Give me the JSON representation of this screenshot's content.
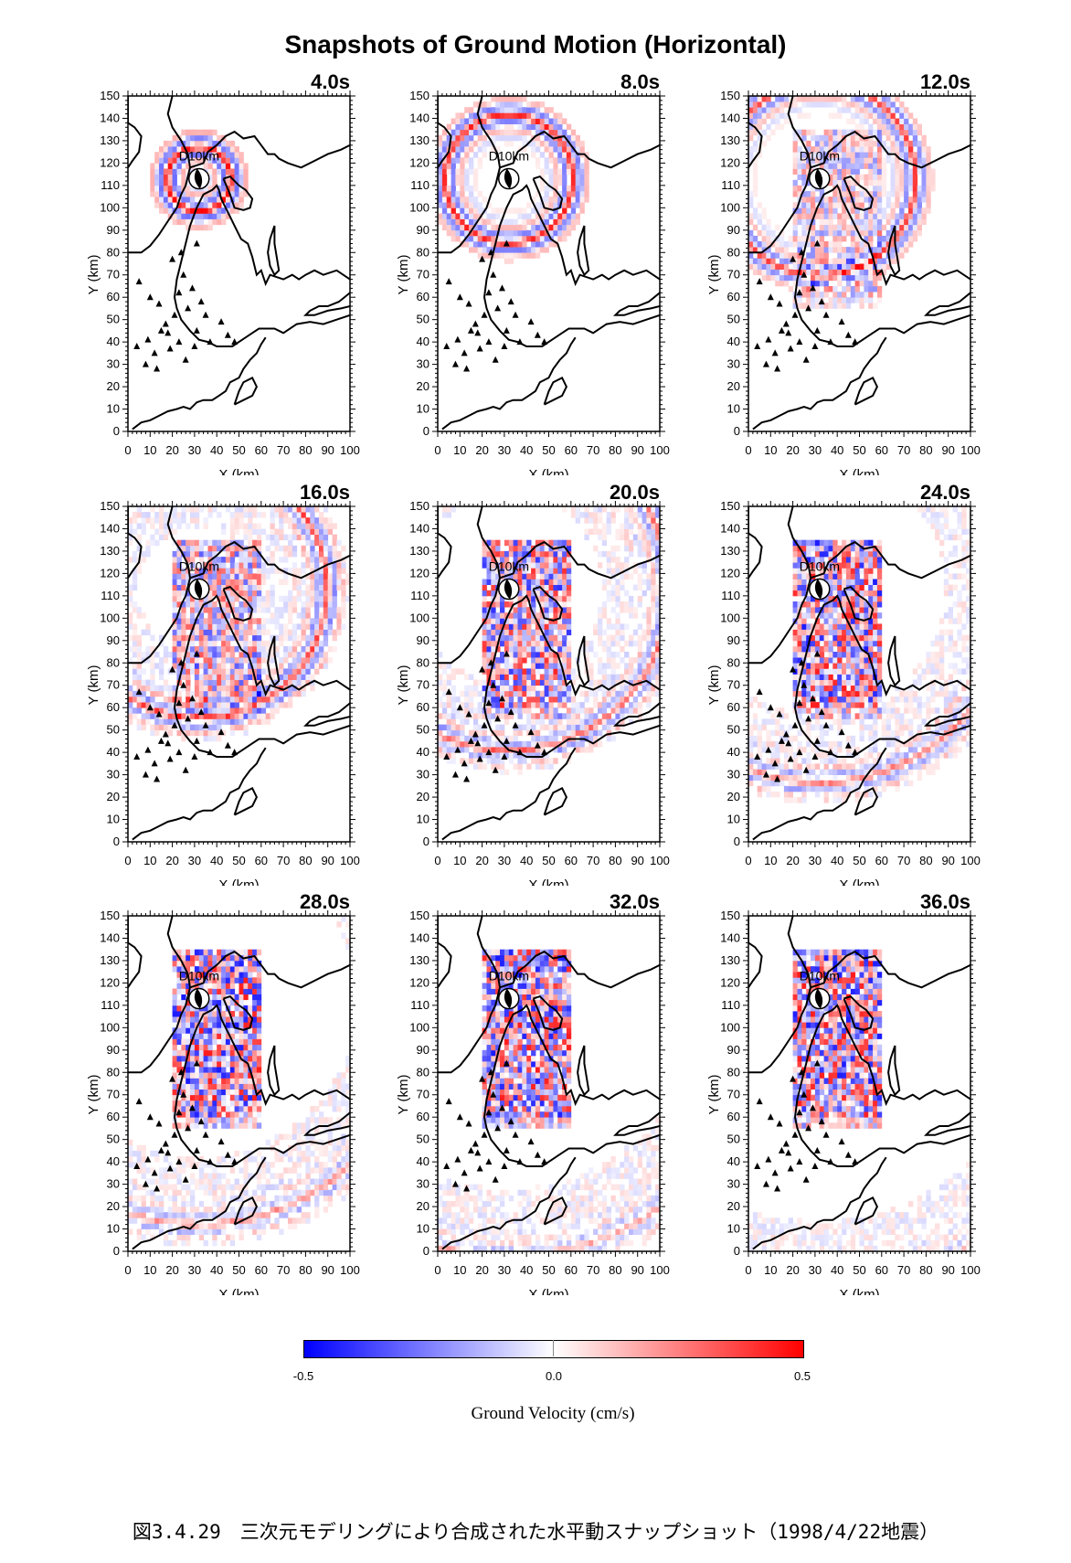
{
  "title": "Snapshots of Ground Motion (Horizontal)",
  "chart_data": {
    "type": "heatmap",
    "panels": [
      {
        "time": "4.0s"
      },
      {
        "time": "8.0s"
      },
      {
        "time": "12.0s"
      },
      {
        "time": "16.0s"
      },
      {
        "time": "20.0s"
      },
      {
        "time": "24.0s"
      },
      {
        "time": "28.0s"
      },
      {
        "time": "32.0s"
      },
      {
        "time": "36.0s"
      }
    ],
    "xlabel": "X (km)",
    "ylabel": "Y (km)",
    "xlim": [
      0,
      100
    ],
    "ylim": [
      0,
      150
    ],
    "x_ticks": [
      "0",
      "10",
      "20",
      "30",
      "40",
      "50",
      "60",
      "70",
      "80",
      "90",
      "100"
    ],
    "y_ticks": [
      "0",
      "10",
      "20",
      "30",
      "40",
      "50",
      "60",
      "70",
      "80",
      "90",
      "100",
      "110",
      "120",
      "130",
      "140",
      "150"
    ],
    "source_label": "D10km",
    "source_location": [
      32,
      113
    ],
    "stations": [
      [
        5,
        67
      ],
      [
        10,
        60
      ],
      [
        14,
        57
      ],
      [
        17,
        48
      ],
      [
        21,
        52
      ],
      [
        12,
        35
      ],
      [
        15,
        45
      ],
      [
        8,
        30
      ],
      [
        23,
        62
      ],
      [
        25,
        70
      ],
      [
        27,
        55
      ],
      [
        29,
        64
      ],
      [
        18,
        44
      ],
      [
        31,
        45
      ],
      [
        33,
        58
      ],
      [
        35,
        52
      ],
      [
        37,
        40
      ],
      [
        26,
        32
      ],
      [
        30,
        38
      ],
      [
        45,
        43
      ],
      [
        48,
        40
      ],
      [
        42,
        49
      ],
      [
        23,
        40
      ],
      [
        13,
        28
      ],
      [
        19,
        37
      ],
      [
        9,
        41
      ],
      [
        4,
        38
      ],
      [
        20,
        77
      ],
      [
        24,
        80
      ],
      [
        31,
        84
      ]
    ],
    "colorbar": {
      "min": -0.5,
      "max": 0.5,
      "ticks": [
        "-0.5",
        "0.0",
        "0.5"
      ],
      "label": "Ground Velocity (cm/s)",
      "colors": [
        "#0000ff",
        "#ffffff",
        "#ff0000"
      ]
    }
  },
  "caption": "図3.4.29　三次元モデリングにより合成された水平動スナップショット（1998/4/22地震）"
}
